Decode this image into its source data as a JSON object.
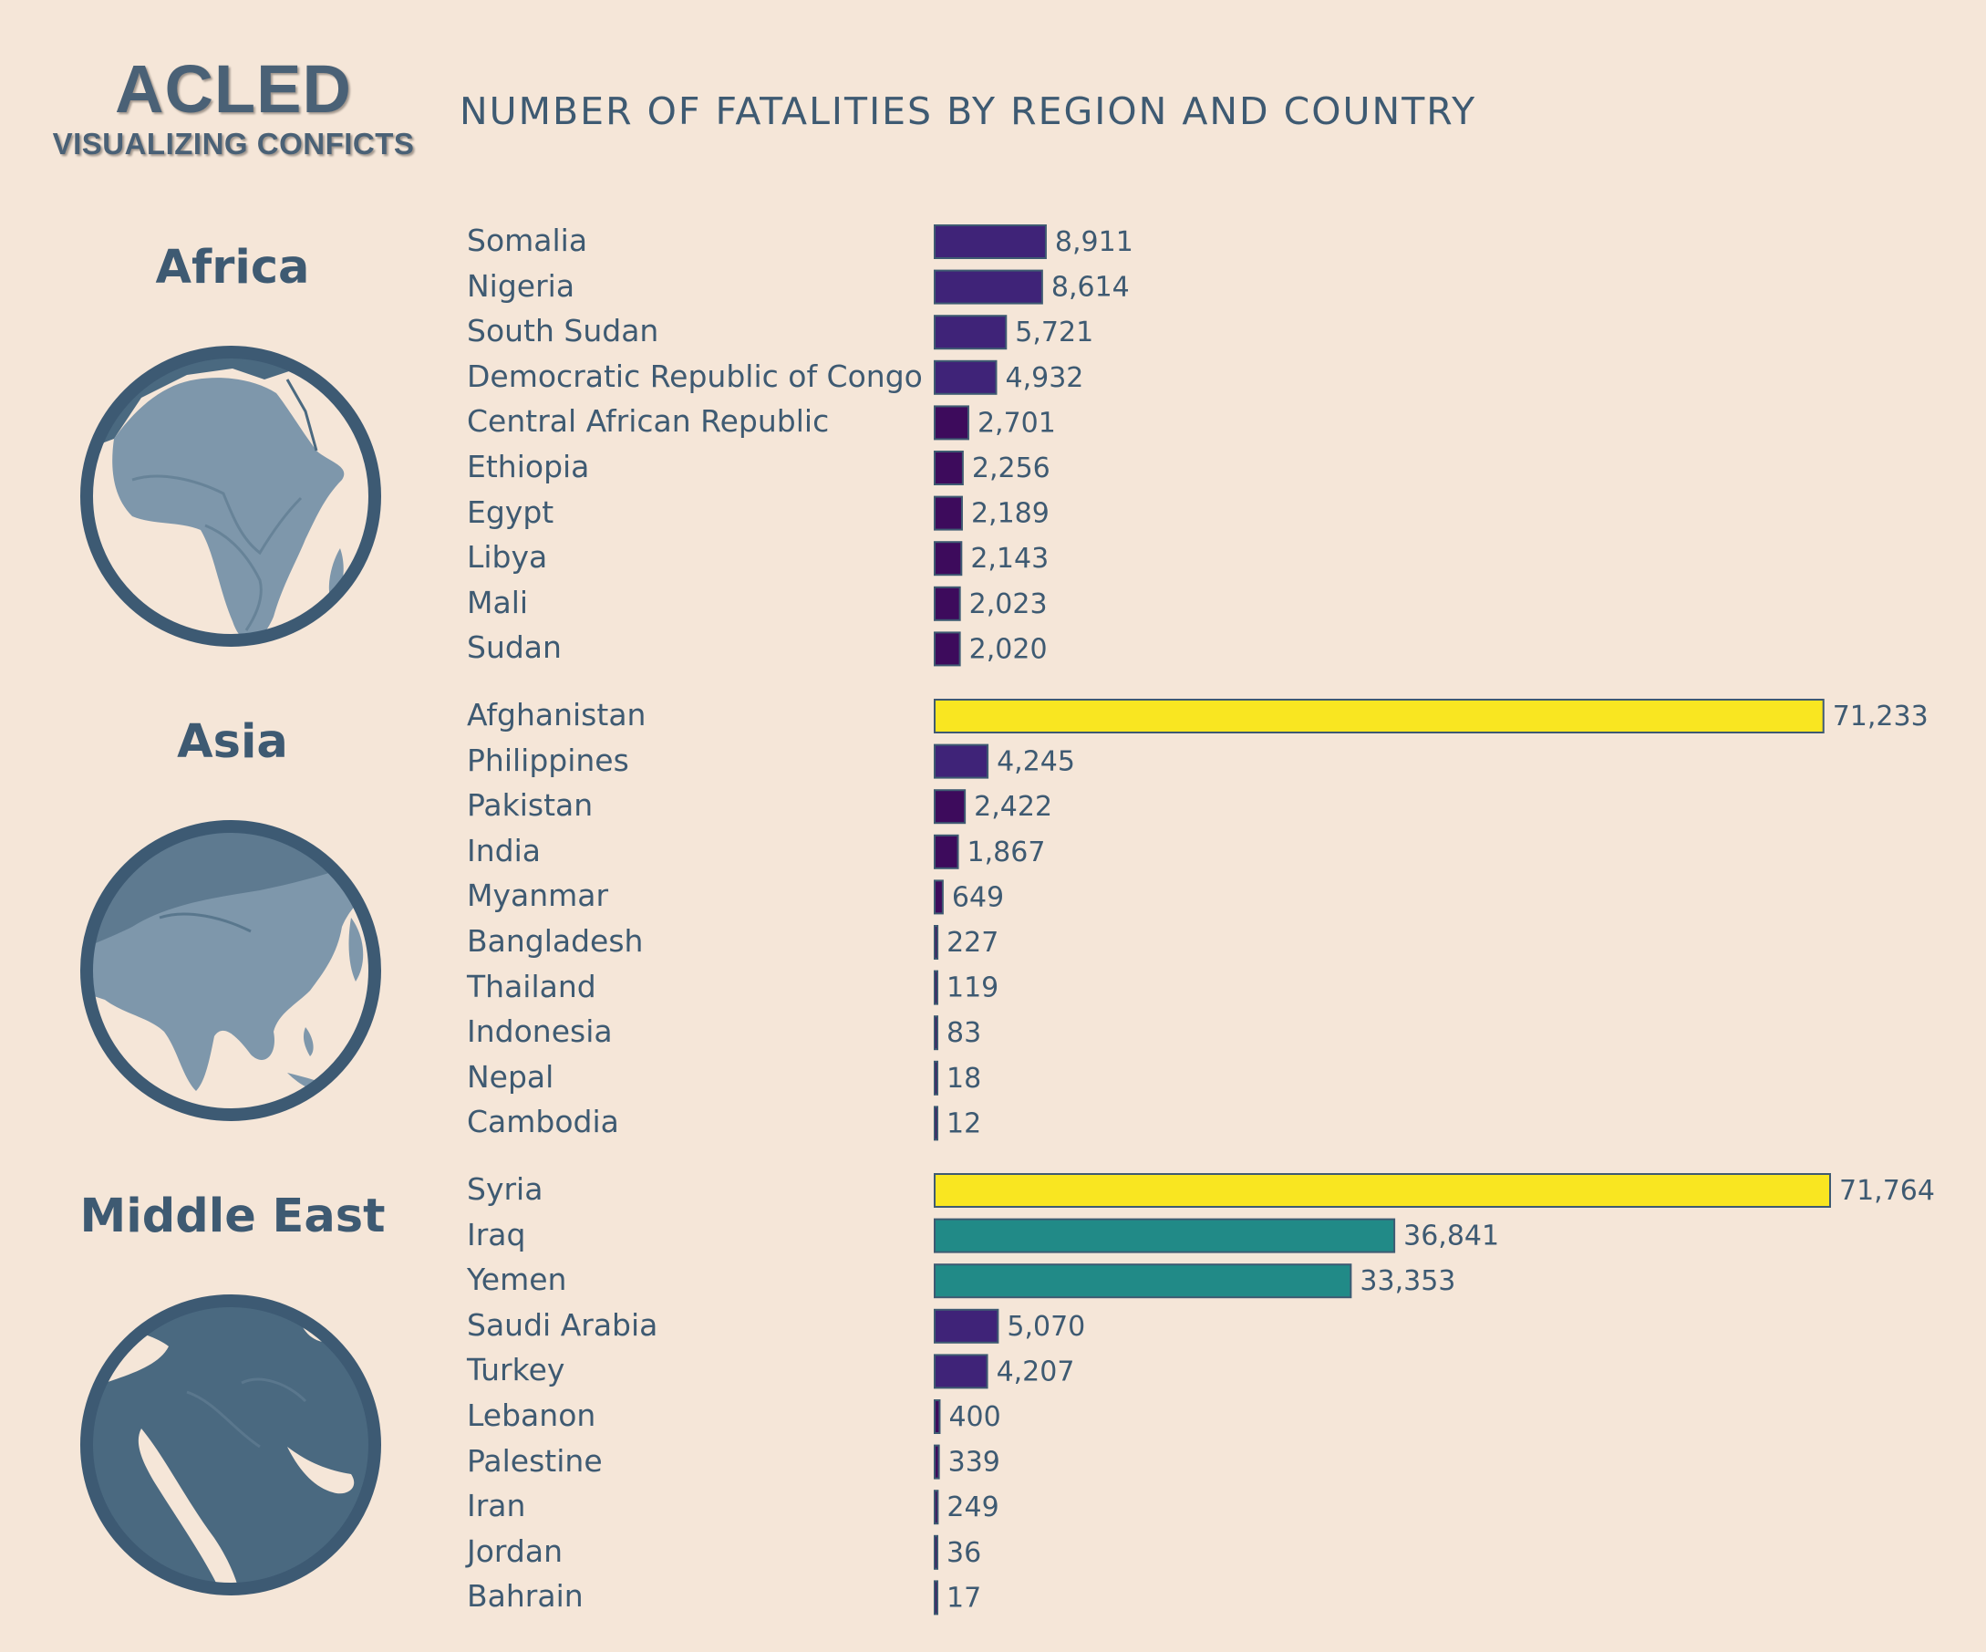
{
  "logo": {
    "main": "ACLED",
    "sub": "VISUALIZING CONFICTS"
  },
  "title": "NUMBER OF FATALITIES BY REGION AND COUNTRY",
  "colors": {
    "background": "#f5e6d8",
    "text": "#3e5a72",
    "globe_ring": "#3d5a73",
    "bar_low": "#3d0b5c",
    "bar_mid_low": "#3f2378",
    "bar_mid": "#218a87",
    "bar_high": "#f9e621"
  },
  "chart_data": {
    "type": "bar",
    "orientation": "horizontal",
    "title": "NUMBER OF FATALITIES BY REGION AND COUNTRY",
    "xlabel": "",
    "ylabel": "",
    "grid": false,
    "legend": "none",
    "xlim": [
      0,
      71764
    ],
    "groups": [
      {
        "name": "Africa",
        "icon": "africa-globe-icon",
        "categories": [
          "Somalia",
          "Nigeria",
          "South Sudan",
          "Democratic Republic of Congo",
          "Central African Republic",
          "Ethiopia",
          "Egypt",
          "Libya",
          "Mali",
          "Sudan"
        ],
        "values": [
          8911,
          8614,
          5721,
          4932,
          2701,
          2256,
          2189,
          2143,
          2023,
          2020
        ],
        "value_labels": [
          "8,911",
          "8,614",
          "5,721",
          "4,932",
          "2,701",
          "2,256",
          "2,189",
          "2,143",
          "2,023",
          "2,020"
        ]
      },
      {
        "name": "Asia",
        "icon": "asia-globe-icon",
        "categories": [
          "Afghanistan",
          "Philippines",
          "Pakistan",
          "India",
          "Myanmar",
          "Bangladesh",
          "Thailand",
          "Indonesia",
          "Nepal",
          "Cambodia"
        ],
        "values": [
          71233,
          4245,
          2422,
          1867,
          649,
          227,
          119,
          83,
          18,
          12
        ],
        "value_labels": [
          "71,233",
          "4,245",
          "2,422",
          "1,867",
          "649",
          "227",
          "119",
          "83",
          "18",
          "12"
        ]
      },
      {
        "name": "Middle East",
        "icon": "middle-east-globe-icon",
        "categories": [
          "Syria",
          "Iraq",
          "Yemen",
          "Saudi Arabia",
          "Turkey",
          "Lebanon",
          "Palestine",
          "Iran",
          "Jordan",
          "Bahrain"
        ],
        "values": [
          71764,
          36841,
          33353,
          5070,
          4207,
          400,
          339,
          249,
          36,
          17
        ],
        "value_labels": [
          "71,764",
          "36,841",
          "33,353",
          "5,070",
          "4,207",
          "400",
          "339",
          "249",
          "36",
          "17"
        ]
      }
    ]
  }
}
